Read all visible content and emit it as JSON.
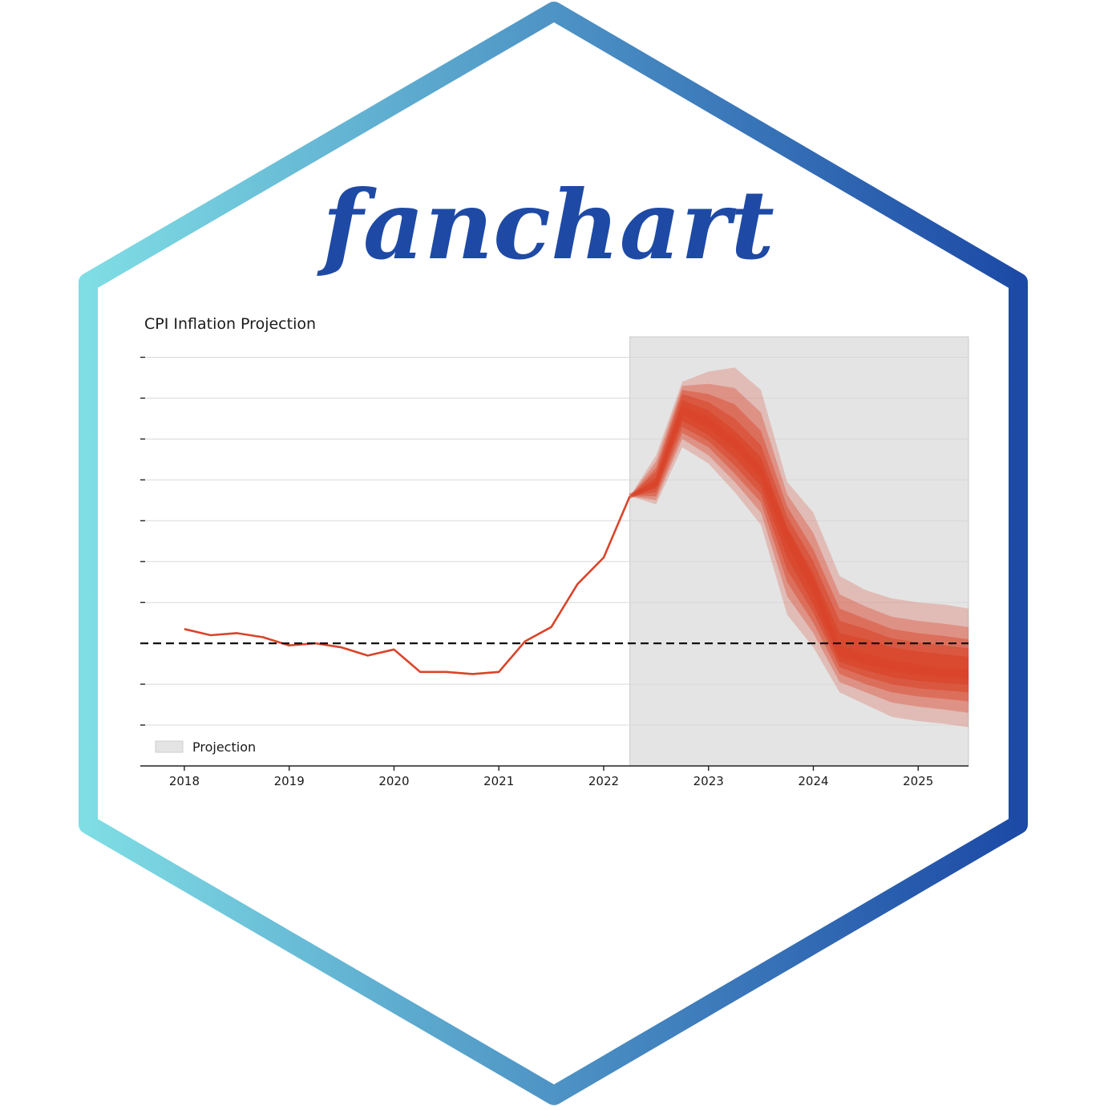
{
  "logo": {
    "wordmark": "fanchart",
    "border_gradient": [
      "#7fdde4",
      "#1c4aa6"
    ],
    "text_color": "#1e4aa6"
  },
  "chart_data": {
    "type": "line",
    "title": "CPI Inflation Projection",
    "xlabel": "",
    "ylabel": "",
    "x_ticks": [
      "2018",
      "2019",
      "2020",
      "2021",
      "2022",
      "2023",
      "2024",
      "2025"
    ],
    "xlim": [
      2017.58,
      2025.48
    ],
    "ylim": [
      -3,
      7.5
    ],
    "y_tick_values": [
      -2,
      -1,
      0,
      1,
      2,
      3,
      4,
      5,
      6,
      7
    ],
    "y_tick_labels_shown": false,
    "grid": "horizontal",
    "reference_line": {
      "y": 0,
      "style": "dashed",
      "color": "#111111"
    },
    "projection_shading": {
      "x_start": 2022.25,
      "x_end": 2025.48,
      "color": "#e4e4e4",
      "label": "Projection"
    },
    "legend": {
      "position": "bottom-left",
      "entries": [
        "Projection"
      ]
    },
    "series": [
      {
        "color": "#d9442a",
        "x": [
          2018.0,
          2018.25,
          2018.5,
          2018.75,
          2019.0,
          2019.25,
          2019.5,
          2019.75,
          2020.0,
          2020.25,
          2020.5,
          2020.75,
          2021.0,
          2021.25,
          2021.5,
          2021.75,
          2022.0,
          2022.25
        ],
        "y": [
          0.35,
          0.2,
          0.25,
          0.15,
          -0.05,
          0.0,
          -0.1,
          -0.3,
          -0.15,
          -0.7,
          -0.7,
          -0.75,
          -0.7,
          0.05,
          0.4,
          1.45,
          2.1,
          3.6
        ]
      }
    ],
    "fan": {
      "color": "#d9442a",
      "x": [
        2022.25,
        2022.5,
        2022.75,
        2023.0,
        2023.25,
        2023.5,
        2023.75,
        2024.0,
        2024.25,
        2024.5,
        2024.75,
        2025.0,
        2025.25,
        2025.48
      ],
      "median": [
        3.6,
        3.9,
        5.7,
        5.4,
        4.9,
        4.2,
        2.6,
        1.4,
        -0.2,
        -0.4,
        -0.55,
        -0.65,
        -0.72,
        -0.75
      ],
      "bands": [
        {
          "level": 90,
          "lower": [
            3.6,
            3.4,
            4.8,
            4.4,
            3.7,
            2.9,
            0.7,
            -0.1,
            -1.2,
            -1.5,
            -1.8,
            -1.9,
            -1.97,
            -2.05
          ],
          "upper": [
            3.6,
            4.6,
            6.4,
            6.65,
            6.75,
            6.2,
            3.95,
            3.2,
            1.65,
            1.3,
            1.1,
            1.0,
            0.95,
            0.85
          ]
        },
        {
          "level": 80,
          "lower": [
            3.6,
            3.5,
            5.0,
            4.6,
            3.95,
            3.2,
            1.15,
            0.25,
            -0.95,
            -1.2,
            -1.45,
            -1.55,
            -1.62,
            -1.7
          ],
          "upper": [
            3.6,
            4.45,
            6.3,
            6.35,
            6.25,
            5.65,
            3.65,
            2.7,
            1.2,
            0.9,
            0.65,
            0.55,
            0.48,
            0.4
          ]
        },
        {
          "level": 70,
          "lower": [
            3.6,
            3.6,
            5.15,
            4.8,
            4.15,
            3.45,
            1.5,
            0.5,
            -0.75,
            -1.0,
            -1.2,
            -1.3,
            -1.36,
            -1.42
          ],
          "upper": [
            3.6,
            4.3,
            6.2,
            6.1,
            5.85,
            5.2,
            3.35,
            2.3,
            0.85,
            0.6,
            0.35,
            0.25,
            0.18,
            0.1
          ]
        },
        {
          "level": 60,
          "lower": [
            3.6,
            3.7,
            5.3,
            4.95,
            4.35,
            3.65,
            1.8,
            0.75,
            -0.58,
            -0.82,
            -1.0,
            -1.1,
            -1.15,
            -1.2
          ],
          "upper": [
            3.6,
            4.2,
            6.1,
            5.9,
            5.5,
            4.85,
            3.1,
            2.0,
            0.55,
            0.35,
            0.12,
            0.02,
            -0.05,
            -0.12
          ]
        },
        {
          "level": 50,
          "lower": [
            3.6,
            3.8,
            5.45,
            5.1,
            4.55,
            3.85,
            2.1,
            0.95,
            -0.45,
            -0.66,
            -0.83,
            -0.92,
            -0.97,
            -1.01
          ],
          "upper": [
            3.6,
            4.05,
            5.95,
            5.7,
            5.2,
            4.55,
            2.85,
            1.7,
            0.25,
            0.1,
            -0.1,
            -0.2,
            -0.27,
            -0.33
          ]
        },
        {
          "level": 30,
          "lower": [
            3.6,
            3.85,
            5.6,
            5.25,
            4.75,
            4.05,
            2.4,
            1.2,
            -0.32,
            -0.52,
            -0.68,
            -0.78,
            -0.84,
            -0.88
          ],
          "upper": [
            3.6,
            3.95,
            5.8,
            5.55,
            5.05,
            4.35,
            2.8,
            1.6,
            -0.05,
            -0.25,
            -0.42,
            -0.52,
            -0.6,
            -0.62
          ]
        }
      ]
    }
  }
}
